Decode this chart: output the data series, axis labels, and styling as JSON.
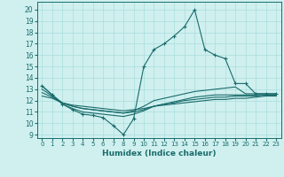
{
  "xlabel": "Humidex (Indice chaleur)",
  "ylabel": "",
  "xlim": [
    -0.5,
    23.5
  ],
  "ylim": [
    8.7,
    20.7
  ],
  "yticks": [
    9,
    10,
    11,
    12,
    13,
    14,
    15,
    16,
    17,
    18,
    19,
    20
  ],
  "xticks": [
    0,
    1,
    2,
    3,
    4,
    5,
    6,
    7,
    8,
    9,
    10,
    11,
    12,
    13,
    14,
    15,
    16,
    17,
    18,
    19,
    20,
    21,
    22,
    23
  ],
  "bg_color": "#cff0ef",
  "grid_color": "#aadddd",
  "line_color": "#1a6b6b",
  "series": [
    {
      "x": [
        0,
        1,
        2,
        3,
        4,
        5,
        6,
        7,
        8,
        9,
        10,
        11,
        12,
        13,
        14,
        15,
        16,
        17,
        18,
        19,
        20,
        21,
        22,
        23
      ],
      "y": [
        13.3,
        12.5,
        11.7,
        11.2,
        10.8,
        10.7,
        10.5,
        9.8,
        9.0,
        10.4,
        15.0,
        16.5,
        17.0,
        17.7,
        18.5,
        20.0,
        16.5,
        16.0,
        15.7,
        13.5,
        13.5,
        12.6,
        12.6,
        12.6
      ],
      "marker": "+"
    },
    {
      "x": [
        0,
        1,
        2,
        3,
        4,
        5,
        6,
        7,
        8,
        9,
        10,
        11,
        12,
        13,
        14,
        15,
        16,
        17,
        18,
        19,
        20,
        21,
        22,
        23
      ],
      "y": [
        13.3,
        12.5,
        11.8,
        11.5,
        11.3,
        11.2,
        11.1,
        11.0,
        10.9,
        11.1,
        11.5,
        12.0,
        12.2,
        12.4,
        12.6,
        12.8,
        12.9,
        13.0,
        13.1,
        13.2,
        12.6,
        12.6,
        12.6,
        12.6
      ],
      "marker": null
    },
    {
      "x": [
        0,
        1,
        2,
        3,
        4,
        5,
        6,
        7,
        8,
        9,
        10,
        11,
        12,
        13,
        14,
        15,
        16,
        17,
        18,
        19,
        20,
        21,
        22,
        23
      ],
      "y": [
        13.0,
        12.4,
        11.7,
        11.3,
        11.0,
        10.9,
        10.8,
        10.7,
        10.6,
        10.8,
        11.1,
        11.5,
        11.7,
        11.9,
        12.1,
        12.3,
        12.4,
        12.5,
        12.5,
        12.5,
        12.5,
        12.5,
        12.5,
        12.5
      ],
      "marker": null
    },
    {
      "x": [
        0,
        1,
        2,
        3,
        4,
        5,
        6,
        7,
        8,
        9,
        10,
        11,
        12,
        13,
        14,
        15,
        16,
        17,
        18,
        19,
        20,
        21,
        22,
        23
      ],
      "y": [
        12.7,
        12.3,
        11.8,
        11.5,
        11.3,
        11.2,
        11.1,
        11.0,
        10.9,
        11.0,
        11.2,
        11.5,
        11.7,
        11.8,
        12.0,
        12.1,
        12.2,
        12.3,
        12.3,
        12.4,
        12.4,
        12.4,
        12.5,
        12.5
      ],
      "marker": null
    },
    {
      "x": [
        0,
        1,
        2,
        3,
        4,
        5,
        6,
        7,
        8,
        9,
        10,
        11,
        12,
        13,
        14,
        15,
        16,
        17,
        18,
        19,
        20,
        21,
        22,
        23
      ],
      "y": [
        12.4,
        12.2,
        11.8,
        11.6,
        11.5,
        11.4,
        11.3,
        11.2,
        11.1,
        11.2,
        11.3,
        11.5,
        11.6,
        11.7,
        11.8,
        11.9,
        12.0,
        12.1,
        12.1,
        12.2,
        12.2,
        12.3,
        12.4,
        12.4
      ],
      "marker": null
    }
  ]
}
